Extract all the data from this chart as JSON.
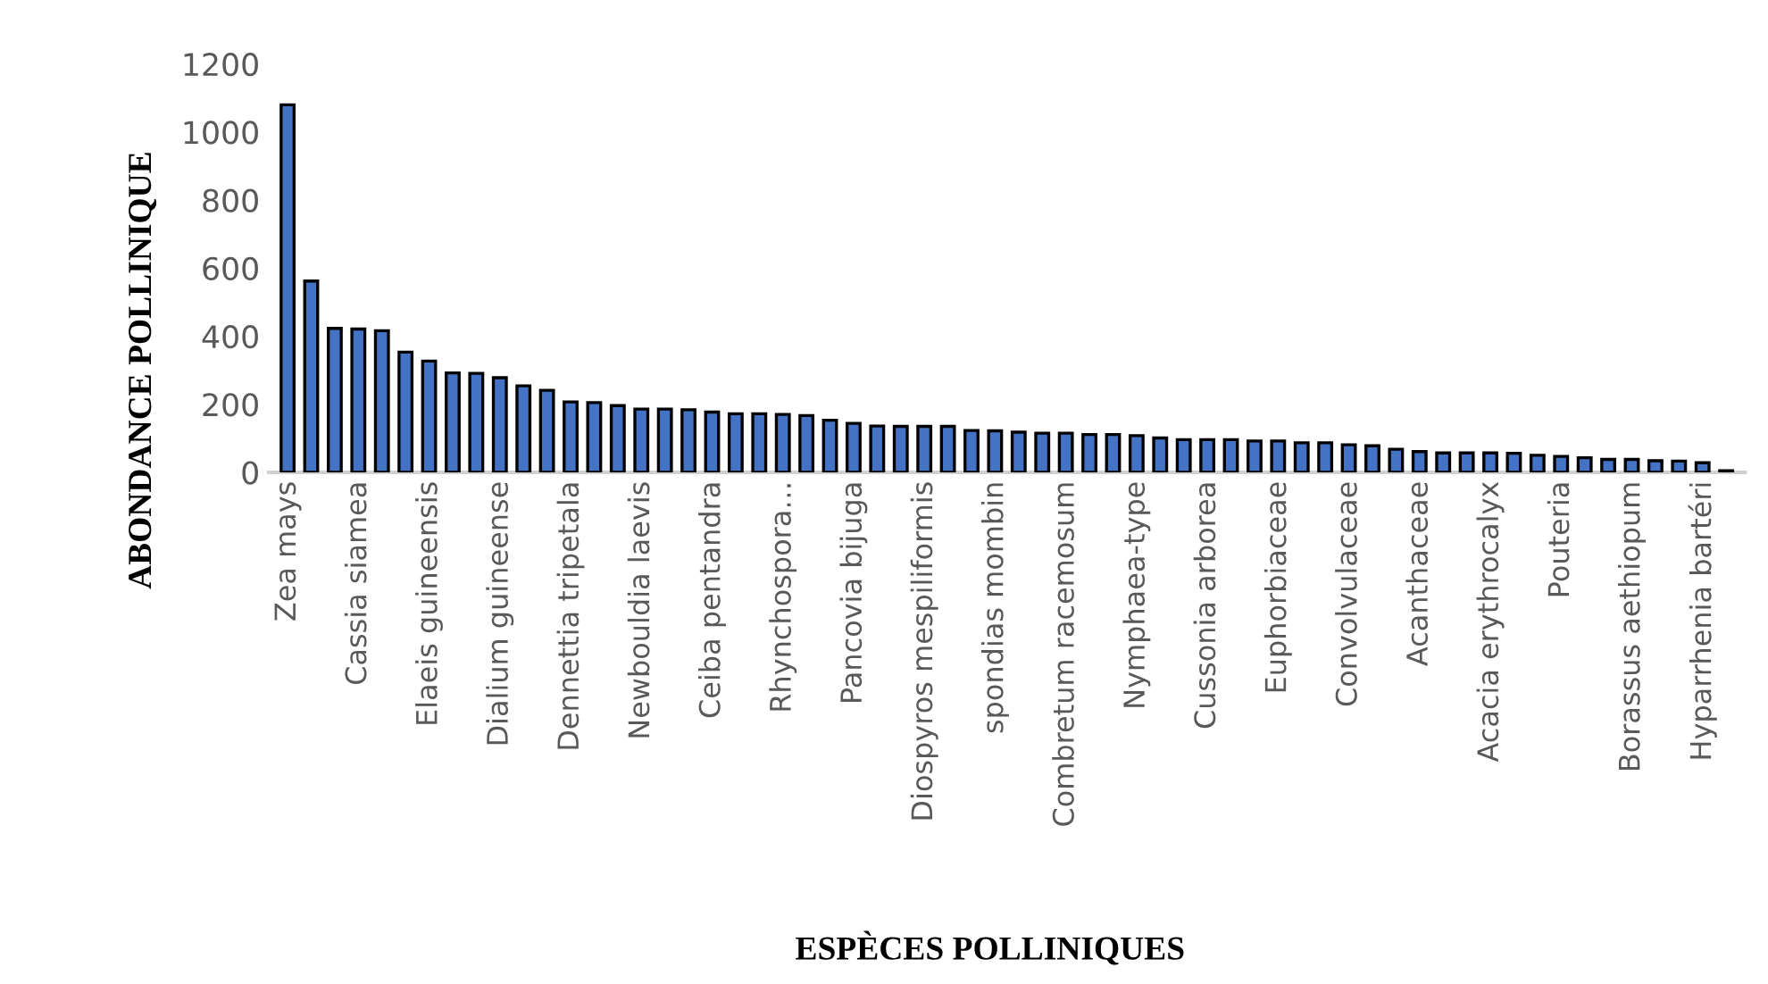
{
  "chart_data": {
    "type": "bar",
    "xlabel": "ESPÈCES POLLINIQUES",
    "ylabel": "ABONDANCE POLLINIQUE",
    "categories": [
      "Zea mays",
      null,
      null,
      "Cassia siamea",
      null,
      null,
      "Elaeis guineensis",
      null,
      null,
      "Dialium guineense",
      null,
      null,
      "Dennettia tripetala",
      null,
      null,
      "Newbouldia laevis",
      null,
      null,
      "Ceiba pentandra",
      null,
      null,
      "Rhynchospora…",
      null,
      null,
      "Pancovia bijuga",
      null,
      null,
      "Diospyros mespiliformis",
      null,
      null,
      "spondias mombin",
      null,
      null,
      "Combretum racemosum",
      null,
      null,
      "Nymphaea-type",
      null,
      null,
      "Cussonia arborea",
      null,
      null,
      "Euphorbiaceae",
      null,
      null,
      "Convolvulaceae",
      null,
      null,
      "Acanthaceae",
      null,
      null,
      "Acacia erythrocalyx",
      null,
      null,
      "Pouteria",
      null,
      null,
      "Borassus aethiopum",
      null,
      null,
      "Hyparrhenia bartéri",
      null
    ],
    "values": [
      1080,
      562,
      423,
      421,
      416,
      353,
      327,
      292,
      291,
      278,
      254,
      241,
      207,
      205,
      196,
      186,
      186,
      184,
      177,
      172,
      172,
      170,
      167,
      153,
      144,
      136,
      135,
      135,
      135,
      123,
      122,
      118,
      115,
      115,
      111,
      111,
      108,
      101,
      96,
      96,
      96,
      92,
      92,
      87,
      87,
      81,
      78,
      68,
      61,
      57,
      57,
      57,
      56,
      50,
      47,
      43,
      38,
      38,
      34,
      33,
      28,
      5
    ],
    "color": "#4472c4",
    "ylim": [
      0,
      1200
    ],
    "yticks": [
      0,
      200,
      400,
      600,
      800,
      1000,
      1200
    ],
    "grid": false,
    "legend": false
  }
}
